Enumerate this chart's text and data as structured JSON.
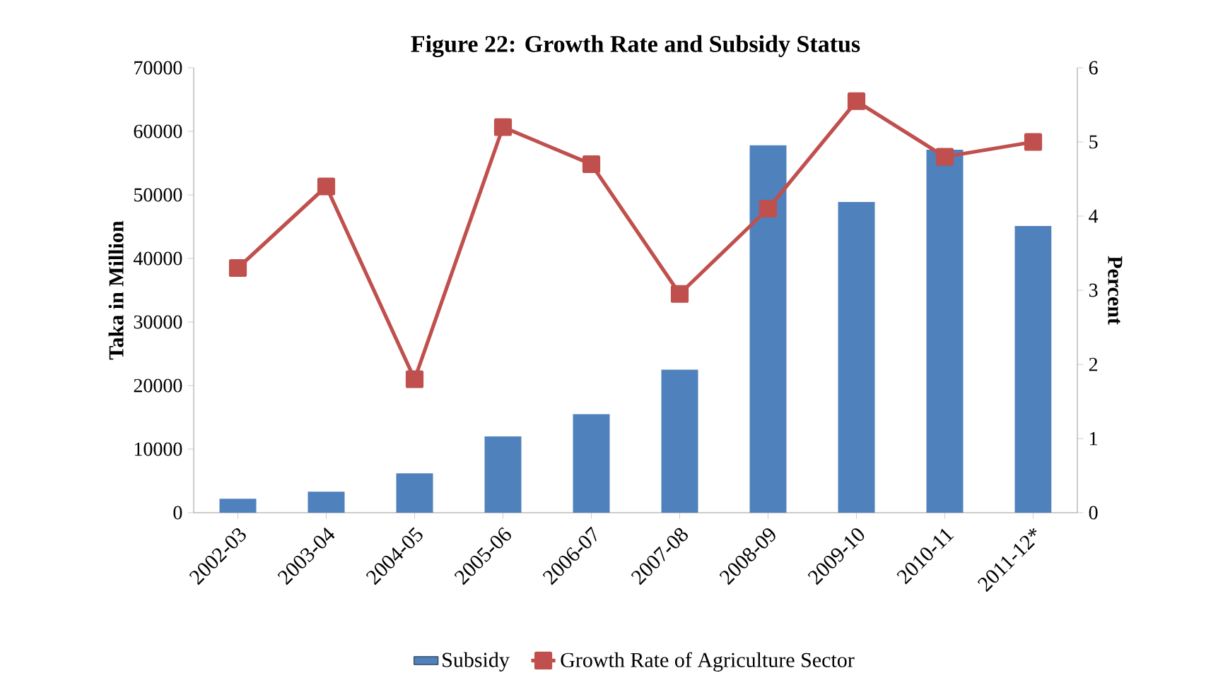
{
  "chart_data": {
    "type": "bar",
    "title": "Figure 22: Growth Rate and Subsidy Status",
    "ylabel": "Taka in Million",
    "y2label": "Percent",
    "categories": [
      "2002-03",
      "2003-04",
      "2004-05",
      "2005-06",
      "2006-07",
      "2007-08",
      "2008-09",
      "2009-10",
      "2010-11",
      "2011-12*"
    ],
    "series": [
      {
        "name": "Subsidy",
        "color": "#4f81bd",
        "values": [
          2200,
          3300,
          6200,
          12000,
          15500,
          22500,
          57800,
          48900,
          57100,
          45100
        ]
      },
      {
        "name": "Growth Rate of Agriculture Sector",
        "type": "line",
        "axis": "y2",
        "color": "#c0504d",
        "marker": "square",
        "values": [
          3.3,
          4.4,
          1.8,
          5.2,
          4.7,
          2.95,
          4.1,
          5.55,
          4.8,
          5.0
        ]
      }
    ],
    "ylim": [
      0,
      70000
    ],
    "yticks": [
      0,
      10000,
      20000,
      30000,
      40000,
      50000,
      60000,
      70000
    ],
    "y2lim": [
      0,
      6
    ],
    "y2ticks": [
      0,
      1,
      2,
      3,
      4,
      5,
      6
    ],
    "legend": "bottom"
  }
}
